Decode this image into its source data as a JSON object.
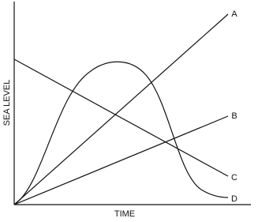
{
  "axes": {
    "y_label": "SEA LEVEL",
    "x_label": "TIME"
  },
  "lines": [
    {
      "label": "A"
    },
    {
      "label": "B"
    },
    {
      "label": "C"
    },
    {
      "label": "D"
    }
  ]
}
